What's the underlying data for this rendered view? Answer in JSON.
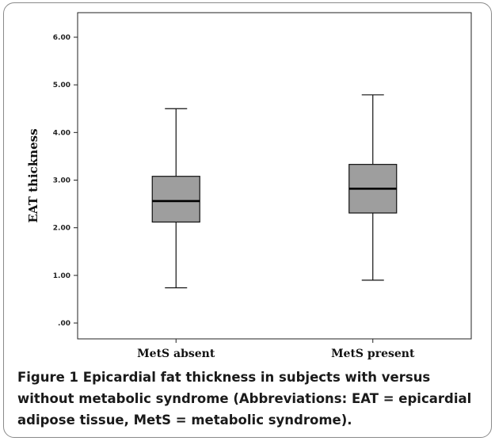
{
  "chart_data": {
    "type": "box",
    "title": "",
    "ylabel": "EAT thickness",
    "xlabel": "",
    "ylim": [
      0,
      6.2
    ],
    "yticks": [
      ".00",
      "1.00",
      "2.00",
      "3.00",
      "4.00",
      "5.00",
      "6.00"
    ],
    "ytick_values": [
      0,
      1,
      2,
      3,
      4,
      5,
      6
    ],
    "categories": [
      "MetS absent",
      "MetS present"
    ],
    "boxes": [
      {
        "category": "MetS absent",
        "min": 0.74,
        "q1": 2.12,
        "median": 2.56,
        "q3": 3.08,
        "max": 4.5
      },
      {
        "category": "MetS present",
        "min": 0.9,
        "q1": 2.31,
        "median": 2.82,
        "q3": 3.33,
        "max": 4.79
      }
    ],
    "box_color": "#9e9e9e",
    "grid": false
  },
  "caption": {
    "label": "Figure 1",
    "text": "Epicardial fat thickness in subjects with versus without metabolic syndrome (Abbreviations: EAT = epicardial adipose tissue, MetS = metabolic syndrome)."
  }
}
